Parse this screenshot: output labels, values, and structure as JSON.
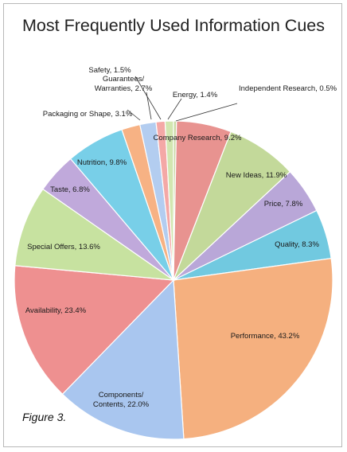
{
  "chart_data": {
    "type": "pie",
    "title": "Most Frequently Used Information Cues",
    "caption": "Figure 3.",
    "slices": [
      {
        "label": "Independent Research, 0.5%",
        "value": 0.5,
        "color": "#c9d9a3"
      },
      {
        "label": "Company Research, 9.2%",
        "value": 9.2,
        "color": "#e89390"
      },
      {
        "label": "New Ideas, 11.9%",
        "value": 11.9,
        "color": "#c3d99a"
      },
      {
        "label": "Price, 7.8%",
        "value": 7.8,
        "color": "#b9a7d8"
      },
      {
        "label": "Quality, 8.3%",
        "value": 8.3,
        "color": "#71c9e0"
      },
      {
        "label": "Performance, 43.2%",
        "value": 43.2,
        "color": "#f5b07f"
      },
      {
        "label": "Components/ Contents, 22.0%",
        "value": 22.0,
        "color": "#a9c6ef"
      },
      {
        "label": "Availability, 23.4%",
        "value": 23.4,
        "color": "#ee9090"
      },
      {
        "label": "Special Offers, 13.6%",
        "value": 13.6,
        "color": "#c7e2a0"
      },
      {
        "label": "Taste, 6.8%",
        "value": 6.8,
        "color": "#c0a9db"
      },
      {
        "label": "Nutrition, 9.8%",
        "value": 9.8,
        "color": "#78cfe8"
      },
      {
        "label": "Packaging or Shape, 3.1%",
        "value": 3.1,
        "color": "#f7b284"
      },
      {
        "label": "Guarantees/ Warranties, 2.7%",
        "value": 2.7,
        "color": "#b3cdf0"
      },
      {
        "label": "Safety, 1.5%",
        "value": 1.5,
        "color": "#f4a8a6"
      },
      {
        "label": "Energy, 1.4%",
        "value": 1.4,
        "color": "#d2e6b0"
      }
    ]
  }
}
